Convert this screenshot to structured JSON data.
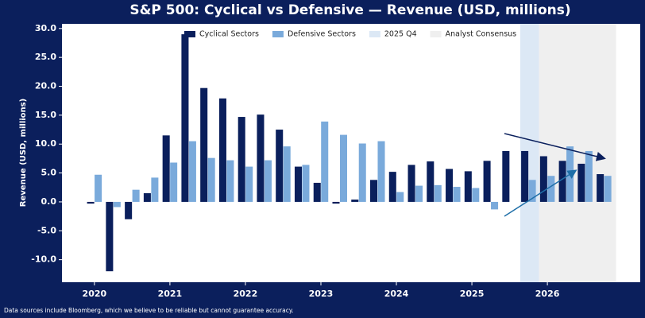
{
  "chart_data": {
    "type": "bar",
    "title": "S&P 500: Cyclical vs Defensive — Revenue (USD, millions)",
    "y_label": "Revenue (USD, millions)",
    "footnote": "Data sources include Bloomberg, which we believe to be reliable but cannot guarantee accuracy.",
    "x": [
      2020,
      2020.25,
      2020.5,
      2020.75,
      2021,
      2021.25,
      2021.5,
      2021.75,
      2022,
      2022.25,
      2022.5,
      2022.75,
      2023,
      2023.25,
      2023.5,
      2023.75,
      2024,
      2024.25,
      2024.5,
      2024.75,
      2025,
      2025.25,
      2025.5,
      2025.75,
      2026,
      2026.25,
      2026.5,
      2026.75
    ],
    "series": [
      {
        "name": "Cyclical Sectors",
        "color": "#0a1f5c",
        "values": [
          -0.3,
          -12.0,
          -3.0,
          1.5,
          11.5,
          29.0,
          19.7,
          17.9,
          14.7,
          15.1,
          12.5,
          6.1,
          3.3,
          -0.3,
          0.4,
          3.8,
          5.2,
          6.4,
          7.0,
          5.7,
          5.3,
          7.1,
          8.8,
          8.8,
          7.9,
          7.1,
          6.6,
          4.8
        ]
      },
      {
        "name": "Defensive Sectors",
        "color": "#7aaadb",
        "values": [
          4.7,
          -0.9,
          2.1,
          4.2,
          6.8,
          10.5,
          7.6,
          7.2,
          6.1,
          7.2,
          9.6,
          6.4,
          13.9,
          11.6,
          10.1,
          10.5,
          1.7,
          2.8,
          2.9,
          2.6,
          2.4,
          -1.3,
          null,
          3.8,
          4.5,
          9.6,
          8.8,
          4.5
        ]
      }
    ],
    "spans": [
      {
        "name": "2025 Q4",
        "start": 2025.64,
        "end": 2025.89,
        "color": "#dce8f5"
      },
      {
        "name": "Analyst Consensus",
        "start": 2025.89,
        "end": 2026.91,
        "color": "#efefef"
      }
    ],
    "xlim": [
      2019.57,
      2027.23
    ],
    "xticks": [
      2020,
      2021,
      2022,
      2023,
      2024,
      2025,
      2026
    ],
    "ylim": [
      -13.9,
      30.8
    ],
    "yticks": [
      {
        "value": -10,
        "label": "-10.0"
      },
      {
        "value": -5,
        "label": "-5.0"
      },
      {
        "value": 0,
        "label": "0.0"
      },
      {
        "value": 5,
        "label": "5.0"
      },
      {
        "value": 10,
        "label": "10.0"
      },
      {
        "value": 15,
        "label": "15.0"
      },
      {
        "value": 20,
        "label": "20.0"
      },
      {
        "value": 25,
        "label": "25.0"
      },
      {
        "value": 30,
        "label": "30.0"
      }
    ]
  }
}
